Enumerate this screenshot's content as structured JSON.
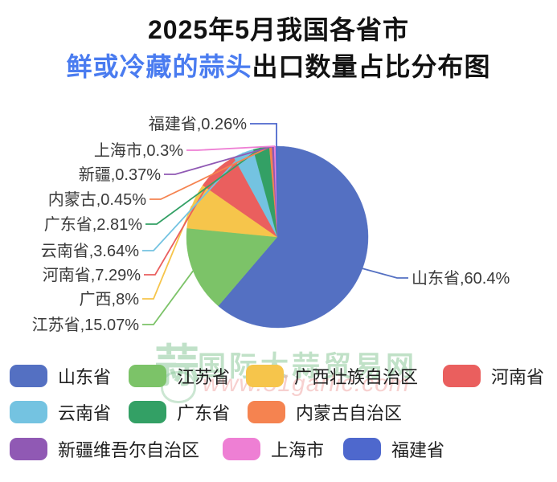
{
  "title": {
    "line1": "2025年5月我国各省市",
    "line2_highlight": "鲜或冷藏的蒜头",
    "line2_rest": "出口数量占比分布图",
    "highlight_color": "#4a7cf0"
  },
  "watermark": {
    "logo_char": "蒜",
    "site_name": "国际大蒜贸易网",
    "site_url": "www.51garlic.com"
  },
  "chart_data": {
    "type": "pie",
    "title": "2025年5月我国各省市鲜或冷藏的蒜头出口数量占比分布图",
    "unit": "%",
    "legend_position": "bottom",
    "start_angle_deg": -90,
    "direction": "clockwise",
    "slices": [
      {
        "legend_label": "山东省",
        "callout_label": "山东省,60.4%",
        "value": 60.4,
        "color": "#5470c2"
      },
      {
        "legend_label": "江苏省",
        "callout_label": "江苏省,15.07%",
        "value": 15.07,
        "color": "#7cc368"
      },
      {
        "legend_label": "广西壮族自治区",
        "callout_label": "广西,8%",
        "value": 8,
        "color": "#f6c54b"
      },
      {
        "legend_label": "河南省",
        "callout_label": "河南省,7.29%",
        "value": 7.29,
        "color": "#ea5f5e"
      },
      {
        "legend_label": "云南省",
        "callout_label": "云南省,3.64%",
        "value": 3.64,
        "color": "#74c3e1"
      },
      {
        "legend_label": "广东省",
        "callout_label": "广东省,2.81%",
        "value": 2.81,
        "color": "#33a065"
      },
      {
        "legend_label": "内蒙古自治区",
        "callout_label": "内蒙古,0.45%",
        "value": 0.45,
        "color": "#f58350"
      },
      {
        "legend_label": "新疆维吾尔自治区",
        "callout_label": "新疆,0.37%",
        "value": 0.37,
        "color": "#9059b4"
      },
      {
        "legend_label": "上海市",
        "callout_label": "上海市,0.3%",
        "value": 0.3,
        "color": "#ee7fd4"
      },
      {
        "legend_label": "福建省",
        "callout_label": "福建省,0.26%",
        "value": 0.26,
        "color": "#4e68cd"
      }
    ]
  }
}
